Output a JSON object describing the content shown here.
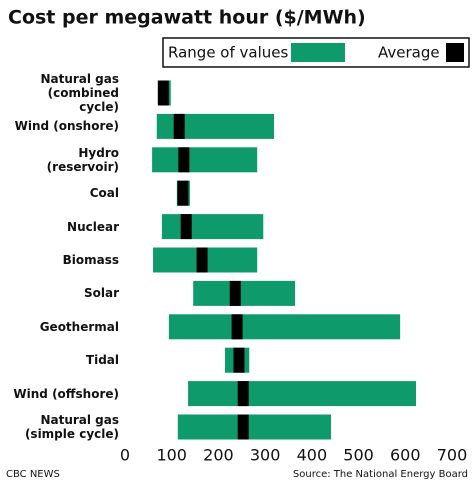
{
  "chart_data": {
    "type": "range-bar",
    "title": "Cost per megawatt hour ($/MWh)",
    "categories": [
      "Natural gas\n(combined cycle)",
      "Wind (onshore)",
      "Hydro (reservoir)",
      "Coal",
      "Nuclear",
      "Biomass",
      "Solar",
      "Geothermal",
      "Tidal",
      "Wind (offshore)",
      "Natural gas\n(simple cycle)"
    ],
    "series": [
      {
        "name": "Range of values",
        "color": "#0f9a6c",
        "values": [
          [
            71,
            98
          ],
          [
            68,
            319
          ],
          [
            58,
            283
          ],
          [
            111,
            139
          ],
          [
            79,
            296
          ],
          [
            60,
            283
          ],
          [
            146,
            364
          ],
          [
            94,
            589
          ],
          [
            214,
            266
          ],
          [
            135,
            623
          ],
          [
            113,
            441
          ]
        ]
      },
      {
        "name": "Average",
        "color": "#000000",
        "values": [
          82,
          116,
          126,
          124,
          131,
          165,
          236,
          240,
          244,
          253,
          253
        ]
      }
    ],
    "xlim": [
      0,
      700
    ],
    "xticks": [
      0,
      100,
      200,
      300,
      400,
      500,
      600,
      700
    ],
    "grid": false,
    "footer_left": "CBC NEWS",
    "footer_right": "Source: The National Energy Board"
  }
}
